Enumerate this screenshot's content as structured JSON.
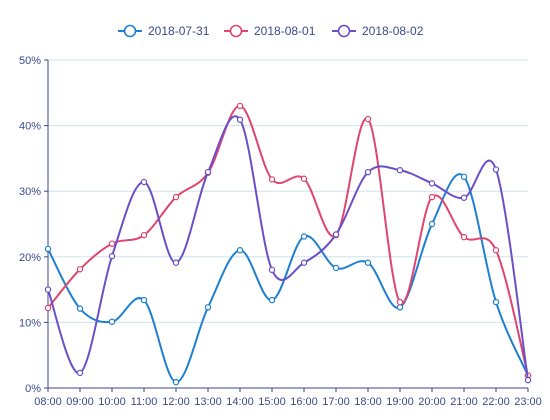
{
  "chart_data": {
    "type": "line",
    "x": [
      "08:00",
      "09:00",
      "10:00",
      "11:00",
      "12:00",
      "13:00",
      "14:00",
      "15:00",
      "16:00",
      "17:00",
      "18:00",
      "19:00",
      "20:00",
      "21:00",
      "22:00",
      "23:00"
    ],
    "ylim": [
      0,
      50
    ],
    "y_ticks": [
      "0%",
      "10%",
      "20%",
      "30%",
      "40%",
      "50%"
    ],
    "grid": true,
    "legend_position": "top-center",
    "series": [
      {
        "name": "2018-07-31",
        "color": "#1f7fd1",
        "values": [
          21.2,
          12.1,
          10.1,
          13.4,
          0.9,
          12.3,
          21.0,
          13.4,
          23.1,
          18.3,
          19.1,
          12.3,
          25.0,
          32.2,
          13.1,
          1.9
        ]
      },
      {
        "name": "2018-08-01",
        "color": "#e0456e",
        "values": [
          12.2,
          18.1,
          22.0,
          23.3,
          29.1,
          32.8,
          43.0,
          31.8,
          31.9,
          23.3,
          41.0,
          13.1,
          29.1,
          23.0,
          21.0,
          1.9
        ]
      },
      {
        "name": "2018-08-02",
        "color": "#6a4fc8",
        "values": [
          15.0,
          2.3,
          20.1,
          31.4,
          19.1,
          32.9,
          40.9,
          18.0,
          19.1,
          23.4,
          32.9,
          33.2,
          31.2,
          29.0,
          33.3,
          1.2
        ]
      }
    ]
  }
}
